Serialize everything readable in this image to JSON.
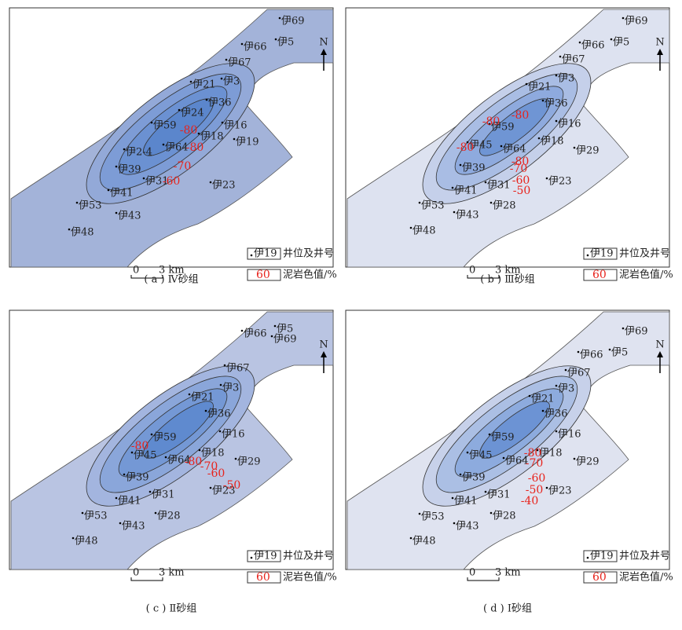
{
  "panels": [
    {
      "caption": "( a ) Ⅳ砂组",
      "wells": [
        "伊69",
        "伊5",
        "伊66",
        "伊67",
        "伊3",
        "伊21",
        "伊36",
        "伊24",
        "伊59",
        "伊16",
        "伊18",
        "伊19",
        "伊64",
        "伊2-4",
        "伊39",
        "伊31",
        "伊23",
        "伊41",
        "伊53",
        "伊43",
        "伊48"
      ],
      "contour_labels": [
        "-80",
        "-80",
        "-70",
        "-60"
      ],
      "legend": {
        "well_sample": "伊19",
        "well_text": "井位及井号",
        "contour_sample": "60",
        "contour_text": "泥岩色值/%"
      },
      "scale": {
        "zero": "0",
        "length": "3 km"
      },
      "north": "N"
    },
    {
      "caption": "( b ) Ⅲ砂组",
      "wells": [
        "伊69",
        "伊5",
        "伊66",
        "伊67",
        "伊3",
        "伊21",
        "伊36",
        "伊59",
        "伊16",
        "伊45",
        "伊18",
        "伊64",
        "伊29",
        "伊39",
        "伊31",
        "伊23",
        "伊41",
        "伊53",
        "伊43",
        "伊28",
        "伊48"
      ],
      "contour_labels": [
        "-80",
        "-80",
        "-80",
        "-80",
        "-70",
        "-60",
        "-50"
      ],
      "legend": {
        "well_sample": "伊19",
        "well_text": "井位及井号",
        "contour_sample": "60",
        "contour_text": "泥岩色值/%"
      },
      "scale": {
        "zero": "0",
        "length": "3 km"
      },
      "north": "N"
    },
    {
      "caption": "( c ) Ⅱ砂组",
      "wells": [
        "伊69",
        "伊5",
        "伊66",
        "伊67",
        "伊3",
        "伊21",
        "伊36",
        "伊59",
        "伊16",
        "伊45",
        "伊18",
        "伊64",
        "伊29",
        "伊39",
        "伊31",
        "伊23",
        "伊41",
        "伊53",
        "伊43",
        "伊28",
        "伊48"
      ],
      "contour_labels": [
        "-80",
        "-80",
        "-70",
        "-60",
        "-50"
      ],
      "legend": {
        "well_sample": "伊19",
        "well_text": "井位及井号",
        "contour_sample": "60",
        "contour_text": "泥岩色值/%"
      },
      "scale": {
        "zero": "0",
        "length": "3 km"
      },
      "north": "N"
    },
    {
      "caption": "( d ) Ⅰ砂组",
      "wells": [
        "伊69",
        "伊5",
        "伊66",
        "伊67",
        "伊3",
        "伊21",
        "伊36",
        "伊59",
        "伊16",
        "伊45",
        "伊64",
        "伊18",
        "伊29",
        "伊39",
        "伊31",
        "伊23",
        "伊41",
        "伊53",
        "伊43",
        "伊28",
        "伊48"
      ],
      "contour_labels": [
        "-80",
        "-70",
        "-60",
        "-50",
        "-40"
      ],
      "legend": {
        "well_sample": "伊19",
        "well_text": "井位及井号",
        "contour_sample": "60",
        "contour_text": "泥岩色值/%"
      },
      "scale": {
        "zero": "0",
        "length": "3 km"
      },
      "north": "N"
    }
  ]
}
